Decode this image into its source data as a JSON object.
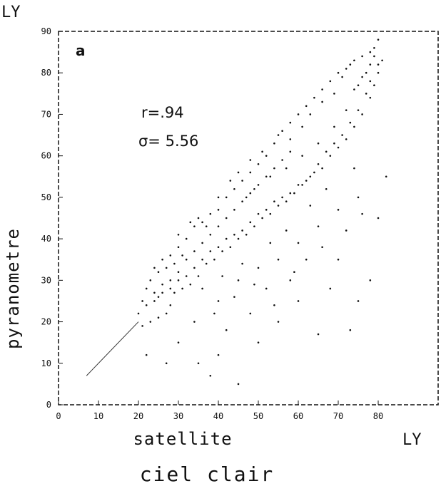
{
  "chart_data": {
    "type": "scatter",
    "panel_label": "a",
    "ylabel": "pyranometre",
    "xlabel": "satellite",
    "x_unit": "LY",
    "y_unit": "LY",
    "caption": "ciel clair",
    "annotations": [
      "r=.94",
      "σ= 5.56"
    ],
    "xlim": [
      0,
      95
    ],
    "ylim": [
      0,
      90
    ],
    "x_ticks": [
      "0",
      "10",
      "20",
      "30",
      "40",
      "50",
      "60",
      "70",
      "80"
    ],
    "y_ticks": [
      "0",
      "10",
      "20",
      "30",
      "40",
      "50",
      "60",
      "70",
      "80",
      "90"
    ],
    "grid": false,
    "points": [
      [
        20,
        22
      ],
      [
        21,
        25
      ],
      [
        22,
        28
      ],
      [
        23,
        30
      ],
      [
        24,
        27
      ],
      [
        25,
        26
      ],
      [
        25,
        32
      ],
      [
        26,
        29
      ],
      [
        27,
        33
      ],
      [
        28,
        36
      ],
      [
        30,
        38
      ],
      [
        32,
        40
      ],
      [
        34,
        43
      ],
      [
        36,
        44
      ],
      [
        38,
        46
      ],
      [
        40,
        47
      ],
      [
        42,
        50
      ],
      [
        44,
        52
      ],
      [
        46,
        54
      ],
      [
        48,
        56
      ],
      [
        50,
        58
      ],
      [
        52,
        60
      ],
      [
        54,
        63
      ],
      [
        56,
        66
      ],
      [
        58,
        68
      ],
      [
        60,
        70
      ],
      [
        62,
        72
      ],
      [
        64,
        74
      ],
      [
        66,
        76
      ],
      [
        68,
        78
      ],
      [
        70,
        80
      ],
      [
        72,
        81
      ],
      [
        74,
        83
      ],
      [
        76,
        84
      ],
      [
        78,
        85
      ],
      [
        79,
        84
      ],
      [
        80,
        82
      ],
      [
        80,
        80
      ],
      [
        79,
        77
      ],
      [
        78,
        74
      ],
      [
        76,
        70
      ],
      [
        74,
        67
      ],
      [
        72,
        64
      ],
      [
        70,
        62
      ],
      [
        68,
        60
      ],
      [
        66,
        57
      ],
      [
        64,
        56
      ],
      [
        62,
        54
      ],
      [
        60,
        53
      ],
      [
        58,
        51
      ],
      [
        56,
        50
      ],
      [
        54,
        49
      ],
      [
        52,
        47
      ],
      [
        50,
        46
      ],
      [
        48,
        44
      ],
      [
        46,
        42
      ],
      [
        44,
        41
      ],
      [
        42,
        40
      ],
      [
        40,
        38
      ],
      [
        38,
        37
      ],
      [
        36,
        35
      ],
      [
        34,
        33
      ],
      [
        32,
        31
      ],
      [
        30,
        30
      ],
      [
        28,
        28
      ],
      [
        26,
        27
      ],
      [
        24,
        25
      ],
      [
        22,
        24
      ],
      [
        27,
        22
      ],
      [
        28,
        24
      ],
      [
        29,
        27
      ],
      [
        31,
        28
      ],
      [
        33,
        29
      ],
      [
        35,
        31
      ],
      [
        37,
        34
      ],
      [
        39,
        35
      ],
      [
        41,
        37
      ],
      [
        43,
        38
      ],
      [
        45,
        40
      ],
      [
        47,
        41
      ],
      [
        49,
        43
      ],
      [
        51,
        45
      ],
      [
        53,
        46
      ],
      [
        55,
        48
      ],
      [
        57,
        49
      ],
      [
        59,
        51
      ],
      [
        61,
        53
      ],
      [
        63,
        55
      ],
      [
        65,
        58
      ],
      [
        67,
        61
      ],
      [
        69,
        63
      ],
      [
        71,
        65
      ],
      [
        73,
        68
      ],
      [
        75,
        71
      ],
      [
        77,
        75
      ],
      [
        78,
        78
      ],
      [
        33,
        44
      ],
      [
        35,
        45
      ],
      [
        37,
        43
      ],
      [
        40,
        50
      ],
      [
        43,
        54
      ],
      [
        45,
        56
      ],
      [
        48,
        59
      ],
      [
        51,
        61
      ],
      [
        55,
        65
      ],
      [
        58,
        64
      ],
      [
        61,
        67
      ],
      [
        63,
        70
      ],
      [
        66,
        73
      ],
      [
        69,
        75
      ],
      [
        71,
        79
      ],
      [
        73,
        82
      ],
      [
        24,
        33
      ],
      [
        26,
        35
      ],
      [
        30,
        41
      ],
      [
        29,
        34
      ],
      [
        31,
        36
      ],
      [
        21,
        19
      ],
      [
        23,
        20
      ],
      [
        25,
        21
      ],
      [
        40,
        25
      ],
      [
        45,
        30
      ],
      [
        50,
        33
      ],
      [
        55,
        35
      ],
      [
        60,
        39
      ],
      [
        65,
        43
      ],
      [
        70,
        47
      ],
      [
        75,
        50
      ],
      [
        42,
        18
      ],
      [
        48,
        22
      ],
      [
        52,
        28
      ],
      [
        58,
        30
      ],
      [
        62,
        35
      ],
      [
        66,
        38
      ],
      [
        72,
        42
      ],
      [
        76,
        46
      ],
      [
        30,
        15
      ],
      [
        35,
        10
      ],
      [
        38,
        7
      ],
      [
        40,
        12
      ],
      [
        45,
        5
      ],
      [
        50,
        15
      ],
      [
        55,
        20
      ],
      [
        60,
        25
      ],
      [
        65,
        17
      ],
      [
        68,
        28
      ],
      [
        70,
        35
      ],
      [
        73,
        18
      ],
      [
        75,
        25
      ],
      [
        78,
        30
      ],
      [
        80,
        45
      ],
      [
        82,
        55
      ],
      [
        36,
        28
      ],
      [
        41,
        31
      ],
      [
        46,
        34
      ],
      [
        53,
        39
      ],
      [
        57,
        42
      ],
      [
        63,
        48
      ],
      [
        67,
        52
      ],
      [
        74,
        57
      ],
      [
        27,
        10
      ],
      [
        22,
        12
      ],
      [
        34,
        20
      ],
      [
        39,
        22
      ],
      [
        44,
        26
      ],
      [
        49,
        29
      ],
      [
        54,
        24
      ],
      [
        59,
        32
      ],
      [
        47,
        50
      ],
      [
        49,
        52
      ],
      [
        53,
        55
      ],
      [
        57,
        57
      ],
      [
        61,
        60
      ],
      [
        65,
        63
      ],
      [
        69,
        67
      ],
      [
        72,
        71
      ],
      [
        75,
        77
      ],
      [
        77,
        80
      ],
      [
        79,
        86
      ],
      [
        81,
        83
      ],
      [
        80,
        88
      ],
      [
        78,
        82
      ],
      [
        76,
        79
      ],
      [
        74,
        76
      ],
      [
        28,
        30
      ],
      [
        30,
        32
      ],
      [
        32,
        35
      ],
      [
        34,
        37
      ],
      [
        36,
        39
      ],
      [
        38,
        41
      ],
      [
        40,
        43
      ],
      [
        42,
        45
      ],
      [
        44,
        47
      ],
      [
        46,
        49
      ],
      [
        48,
        51
      ],
      [
        50,
        53
      ],
      [
        52,
        55
      ],
      [
        54,
        57
      ],
      [
        56,
        59
      ],
      [
        58,
        61
      ]
    ],
    "line": [
      [
        7,
        7
      ],
      [
        20,
        20
      ]
    ]
  }
}
